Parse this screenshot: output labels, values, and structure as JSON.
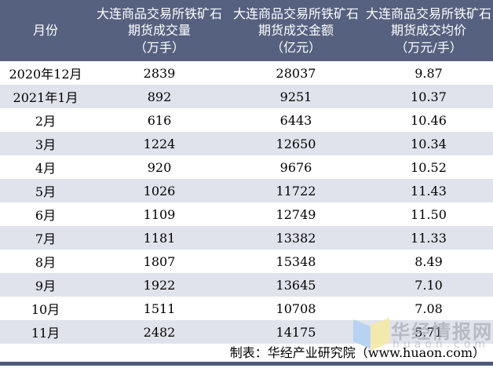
{
  "chart_data": {
    "type": "table",
    "title": "大连商品交易所铁矿石期货成交情况",
    "columns": [
      "月份",
      "大连商品交易所铁矿石期货成交量（万手）",
      "大连商品交易所铁矿石期货成交金额（亿元）",
      "大连商品交易所铁矿石期货成交均价（万元/手）"
    ],
    "rows_numeric": [
      [
        "2020年12月",
        2839,
        28037,
        9.87
      ],
      [
        "2021年1月",
        892,
        9251,
        10.37
      ],
      [
        "2月",
        616,
        6443,
        10.46
      ],
      [
        "3月",
        1224,
        12650,
        10.34
      ],
      [
        "4月",
        920,
        9676,
        10.52
      ],
      [
        "5月",
        1026,
        11722,
        11.43
      ],
      [
        "6月",
        1109,
        12749,
        11.5
      ],
      [
        "7月",
        1181,
        13382,
        11.33
      ],
      [
        "8月",
        1807,
        15348,
        8.49
      ],
      [
        "9月",
        1922,
        13645,
        7.1
      ],
      [
        "10月",
        1511,
        10708,
        7.08
      ],
      [
        "11月",
        2482,
        14175,
        5.71
      ]
    ]
  },
  "table": {
    "columns": [
      [
        "月份"
      ],
      [
        "大连商品交易所铁矿石",
        "期货成交量",
        "（万手）"
      ],
      [
        "大连商品交易所铁矿石",
        "期货成交金额",
        "（亿元）"
      ],
      [
        "大连商品交易所铁矿石",
        "期货成交均价",
        "（万元/手）"
      ]
    ],
    "rows": [
      [
        "2020年12月",
        "2839",
        "28037",
        "9.87"
      ],
      [
        "2021年1月",
        "892",
        "9251",
        "10.37"
      ],
      [
        "2月",
        "616",
        "6443",
        "10.46"
      ],
      [
        "3月",
        "1224",
        "12650",
        "10.34"
      ],
      [
        "4月",
        "920",
        "9676",
        "10.52"
      ],
      [
        "5月",
        "1026",
        "11722",
        "11.43"
      ],
      [
        "6月",
        "1109",
        "12749",
        "11.50"
      ],
      [
        "7月",
        "1181",
        "13382",
        "11.33"
      ],
      [
        "8月",
        "1807",
        "15348",
        "8.49"
      ],
      [
        "9月",
        "1922",
        "13645",
        "7.10"
      ],
      [
        "10月",
        "1511",
        "10708",
        "7.08"
      ],
      [
        "11月",
        "2482",
        "14175",
        "5.71"
      ]
    ]
  },
  "footer": {
    "credit": "制表：华经产业研究院（www.huaon.com）"
  },
  "watermark": {
    "brand": "华经情报网",
    "domain": "huaon.com"
  },
  "colors": {
    "header_bg": "#566180",
    "stripe_bg": "#e0e3eb",
    "bottom_bar": "#4e5a7c",
    "header_text": "#ffffff",
    "body_text": "#000000",
    "logo_blue": "#b3d0f2",
    "logo_yellow": "#f6e9a5"
  }
}
